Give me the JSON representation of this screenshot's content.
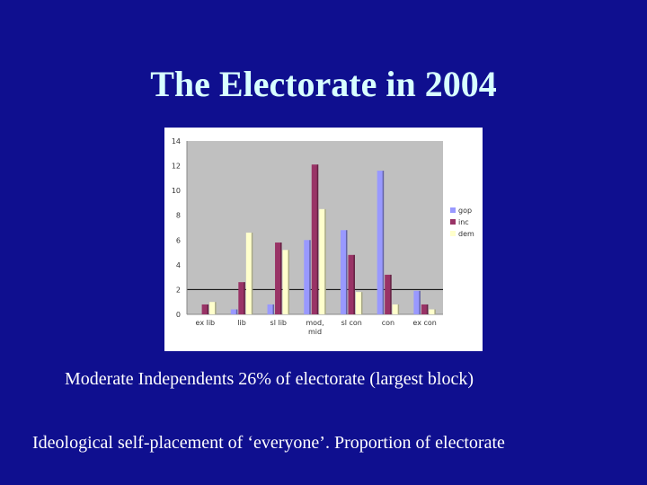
{
  "slide": {
    "title": "The Electorate in 2004",
    "caption1": "Moderate Independents 26% of electorate (largest block)",
    "caption2": "Ideological self-placement of ‘everyone’.  Proportion of electorate"
  },
  "chart_data": {
    "type": "bar",
    "categories": [
      "ex lib",
      "lib",
      "sl lib",
      "mod, mid",
      "sl con",
      "con",
      "ex con"
    ],
    "series": [
      {
        "name": "gop",
        "color": "#9999ff",
        "values": [
          0.0,
          0.4,
          0.8,
          6.0,
          6.8,
          11.6,
          1.9
        ]
      },
      {
        "name": "inc",
        "color": "#993366",
        "values": [
          0.8,
          2.6,
          5.8,
          12.1,
          4.8,
          3.2,
          0.8
        ]
      },
      {
        "name": "dem",
        "color": "#ffffcc",
        "values": [
          1.0,
          6.6,
          5.2,
          8.5,
          1.8,
          0.8,
          0.4
        ]
      }
    ],
    "yticks": [
      "0",
      "2",
      "4",
      "6",
      "8",
      "10",
      "12",
      "14"
    ],
    "ylim": [
      0,
      14
    ],
    "plot_background": "#c0c0c0",
    "legend": "right",
    "grid": false
  }
}
